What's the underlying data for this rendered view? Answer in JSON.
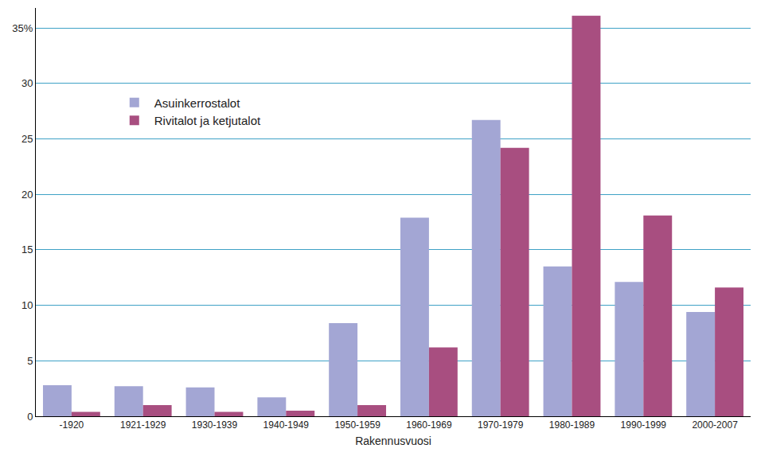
{
  "chart_data": {
    "type": "bar",
    "x_label": "Rakennusvuosi",
    "categories": [
      "-1920",
      "1921-1929",
      "1930-1939",
      "1940-1949",
      "1950-1959",
      "1960-1969",
      "1970-1979",
      "1980-1989",
      "1990-1999",
      "2000-2007"
    ],
    "series": [
      {
        "name": "Asuinkerrostalot",
        "color": "#a3a6d4",
        "values": [
          2.8,
          2.7,
          2.6,
          1.7,
          8.4,
          17.9,
          26.7,
          13.5,
          12.1,
          9.4
        ]
      },
      {
        "name": "Rivitalot ja ketjutalot",
        "color": "#a84e80",
        "values": [
          0.4,
          1.0,
          0.4,
          0.5,
          1.0,
          6.2,
          24.2,
          36.1,
          18.1,
          11.6
        ]
      }
    ],
    "ylim": [
      0,
      36.8
    ],
    "yticks": [
      0,
      5,
      10,
      15,
      20,
      25,
      30,
      {
        "value": 35,
        "label": "35%"
      }
    ],
    "grid": true,
    "legend": "upper left"
  }
}
